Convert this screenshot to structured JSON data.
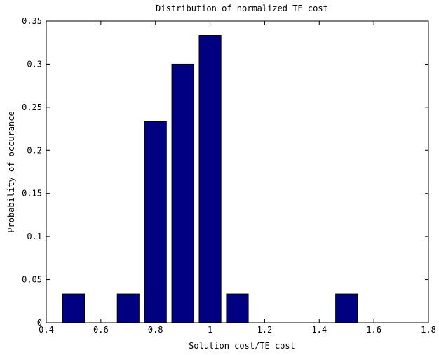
{
  "chart_data": {
    "type": "bar",
    "title": "Distribution of normalized TE cost",
    "xlabel": "Solution cost/TE cost",
    "ylabel": "Probability of occurance",
    "xlim": [
      0.4,
      1.8
    ],
    "ylim": [
      0,
      0.35
    ],
    "xticks": [
      "0.4",
      "0.6",
      "0.8",
      "1",
      "1.2",
      "1.4",
      "1.6",
      "1.8"
    ],
    "yticks": [
      "0",
      "0.05",
      "0.1",
      "0.15",
      "0.2",
      "0.25",
      "0.3",
      "0.35"
    ],
    "bar_width": 0.08,
    "x": [
      0.5,
      0.7,
      0.8,
      0.9,
      1.0,
      1.1,
      1.5
    ],
    "values": [
      0.0333,
      0.0333,
      0.2333,
      0.3,
      0.3333,
      0.0333,
      0.0333
    ],
    "bar_color": "#000080",
    "grid": false,
    "legend": "none"
  }
}
